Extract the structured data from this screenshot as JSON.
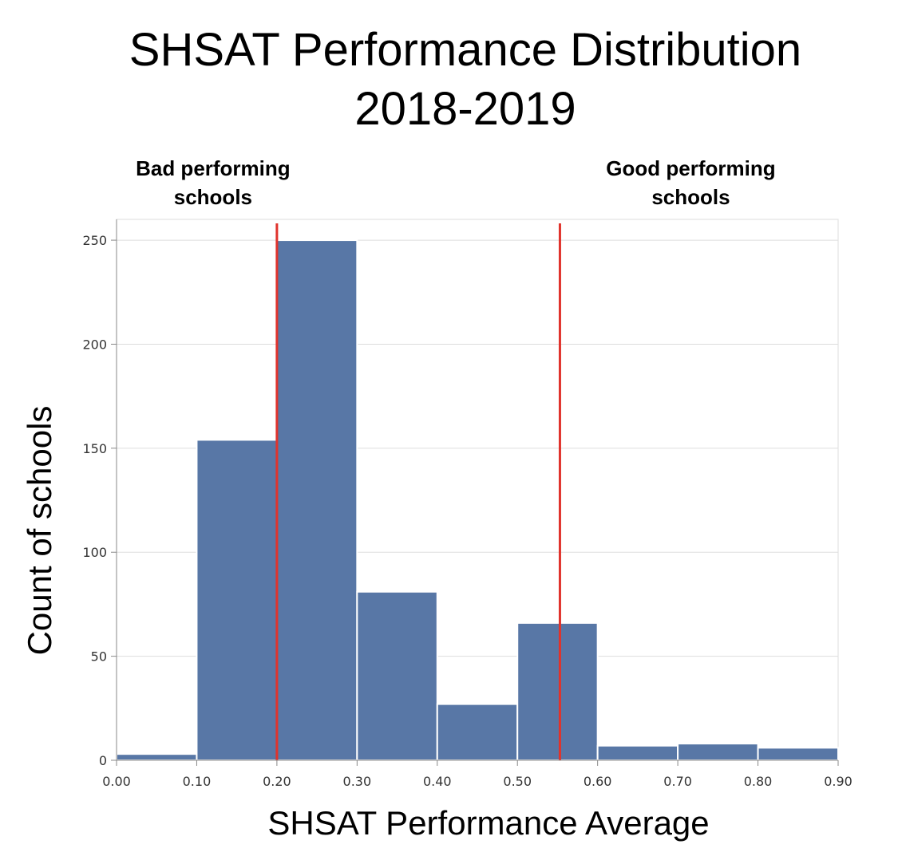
{
  "chart_data": {
    "type": "bar",
    "title_lines": [
      "SHSAT Performance Distribution",
      "2018-2019"
    ],
    "xlabel": "SHSAT Performance Average",
    "ylabel": "Count of schools",
    "bins": [
      {
        "start": 0.0,
        "end": 0.1,
        "count": 3
      },
      {
        "start": 0.1,
        "end": 0.2,
        "count": 154
      },
      {
        "start": 0.2,
        "end": 0.3,
        "count": 250
      },
      {
        "start": 0.3,
        "end": 0.4,
        "count": 81
      },
      {
        "start": 0.4,
        "end": 0.5,
        "count": 27
      },
      {
        "start": 0.5,
        "end": 0.6,
        "count": 66
      },
      {
        "start": 0.6,
        "end": 0.7,
        "count": 7
      },
      {
        "start": 0.7,
        "end": 0.8,
        "count": 8
      },
      {
        "start": 0.8,
        "end": 0.9,
        "count": 6
      }
    ],
    "xlim": [
      0,
      0.9
    ],
    "ylim": [
      0,
      260
    ],
    "x_ticks": [
      {
        "value": 0.0,
        "label": "0.00"
      },
      {
        "value": 0.1,
        "label": "0.10"
      },
      {
        "value": 0.2,
        "label": "0.20"
      },
      {
        "value": 0.3,
        "label": "0.30"
      },
      {
        "value": 0.4,
        "label": "0.40"
      },
      {
        "value": 0.5,
        "label": "0.50"
      },
      {
        "value": 0.6,
        "label": "0.60"
      },
      {
        "value": 0.7,
        "label": "0.70"
      },
      {
        "value": 0.8,
        "label": "0.80"
      },
      {
        "value": 0.9,
        "label": "0.90"
      }
    ],
    "y_ticks": [
      {
        "value": 0,
        "label": "0"
      },
      {
        "value": 50,
        "label": "50"
      },
      {
        "value": 100,
        "label": "100"
      },
      {
        "value": 150,
        "label": "150"
      },
      {
        "value": 200,
        "label": "200"
      },
      {
        "value": 250,
        "label": "250"
      }
    ],
    "grid": true,
    "reference_lines": [
      {
        "x": 0.2,
        "color": "#e0332c",
        "label_lines": [
          "Bad performing",
          "schools"
        ]
      },
      {
        "x": 0.553,
        "color": "#e0332c",
        "label_lines": [
          "Good performing",
          "schools"
        ]
      }
    ],
    "colors": {
      "bar": "#5877a6",
      "reference": "#e0332c",
      "grid": "#dddddd"
    }
  }
}
